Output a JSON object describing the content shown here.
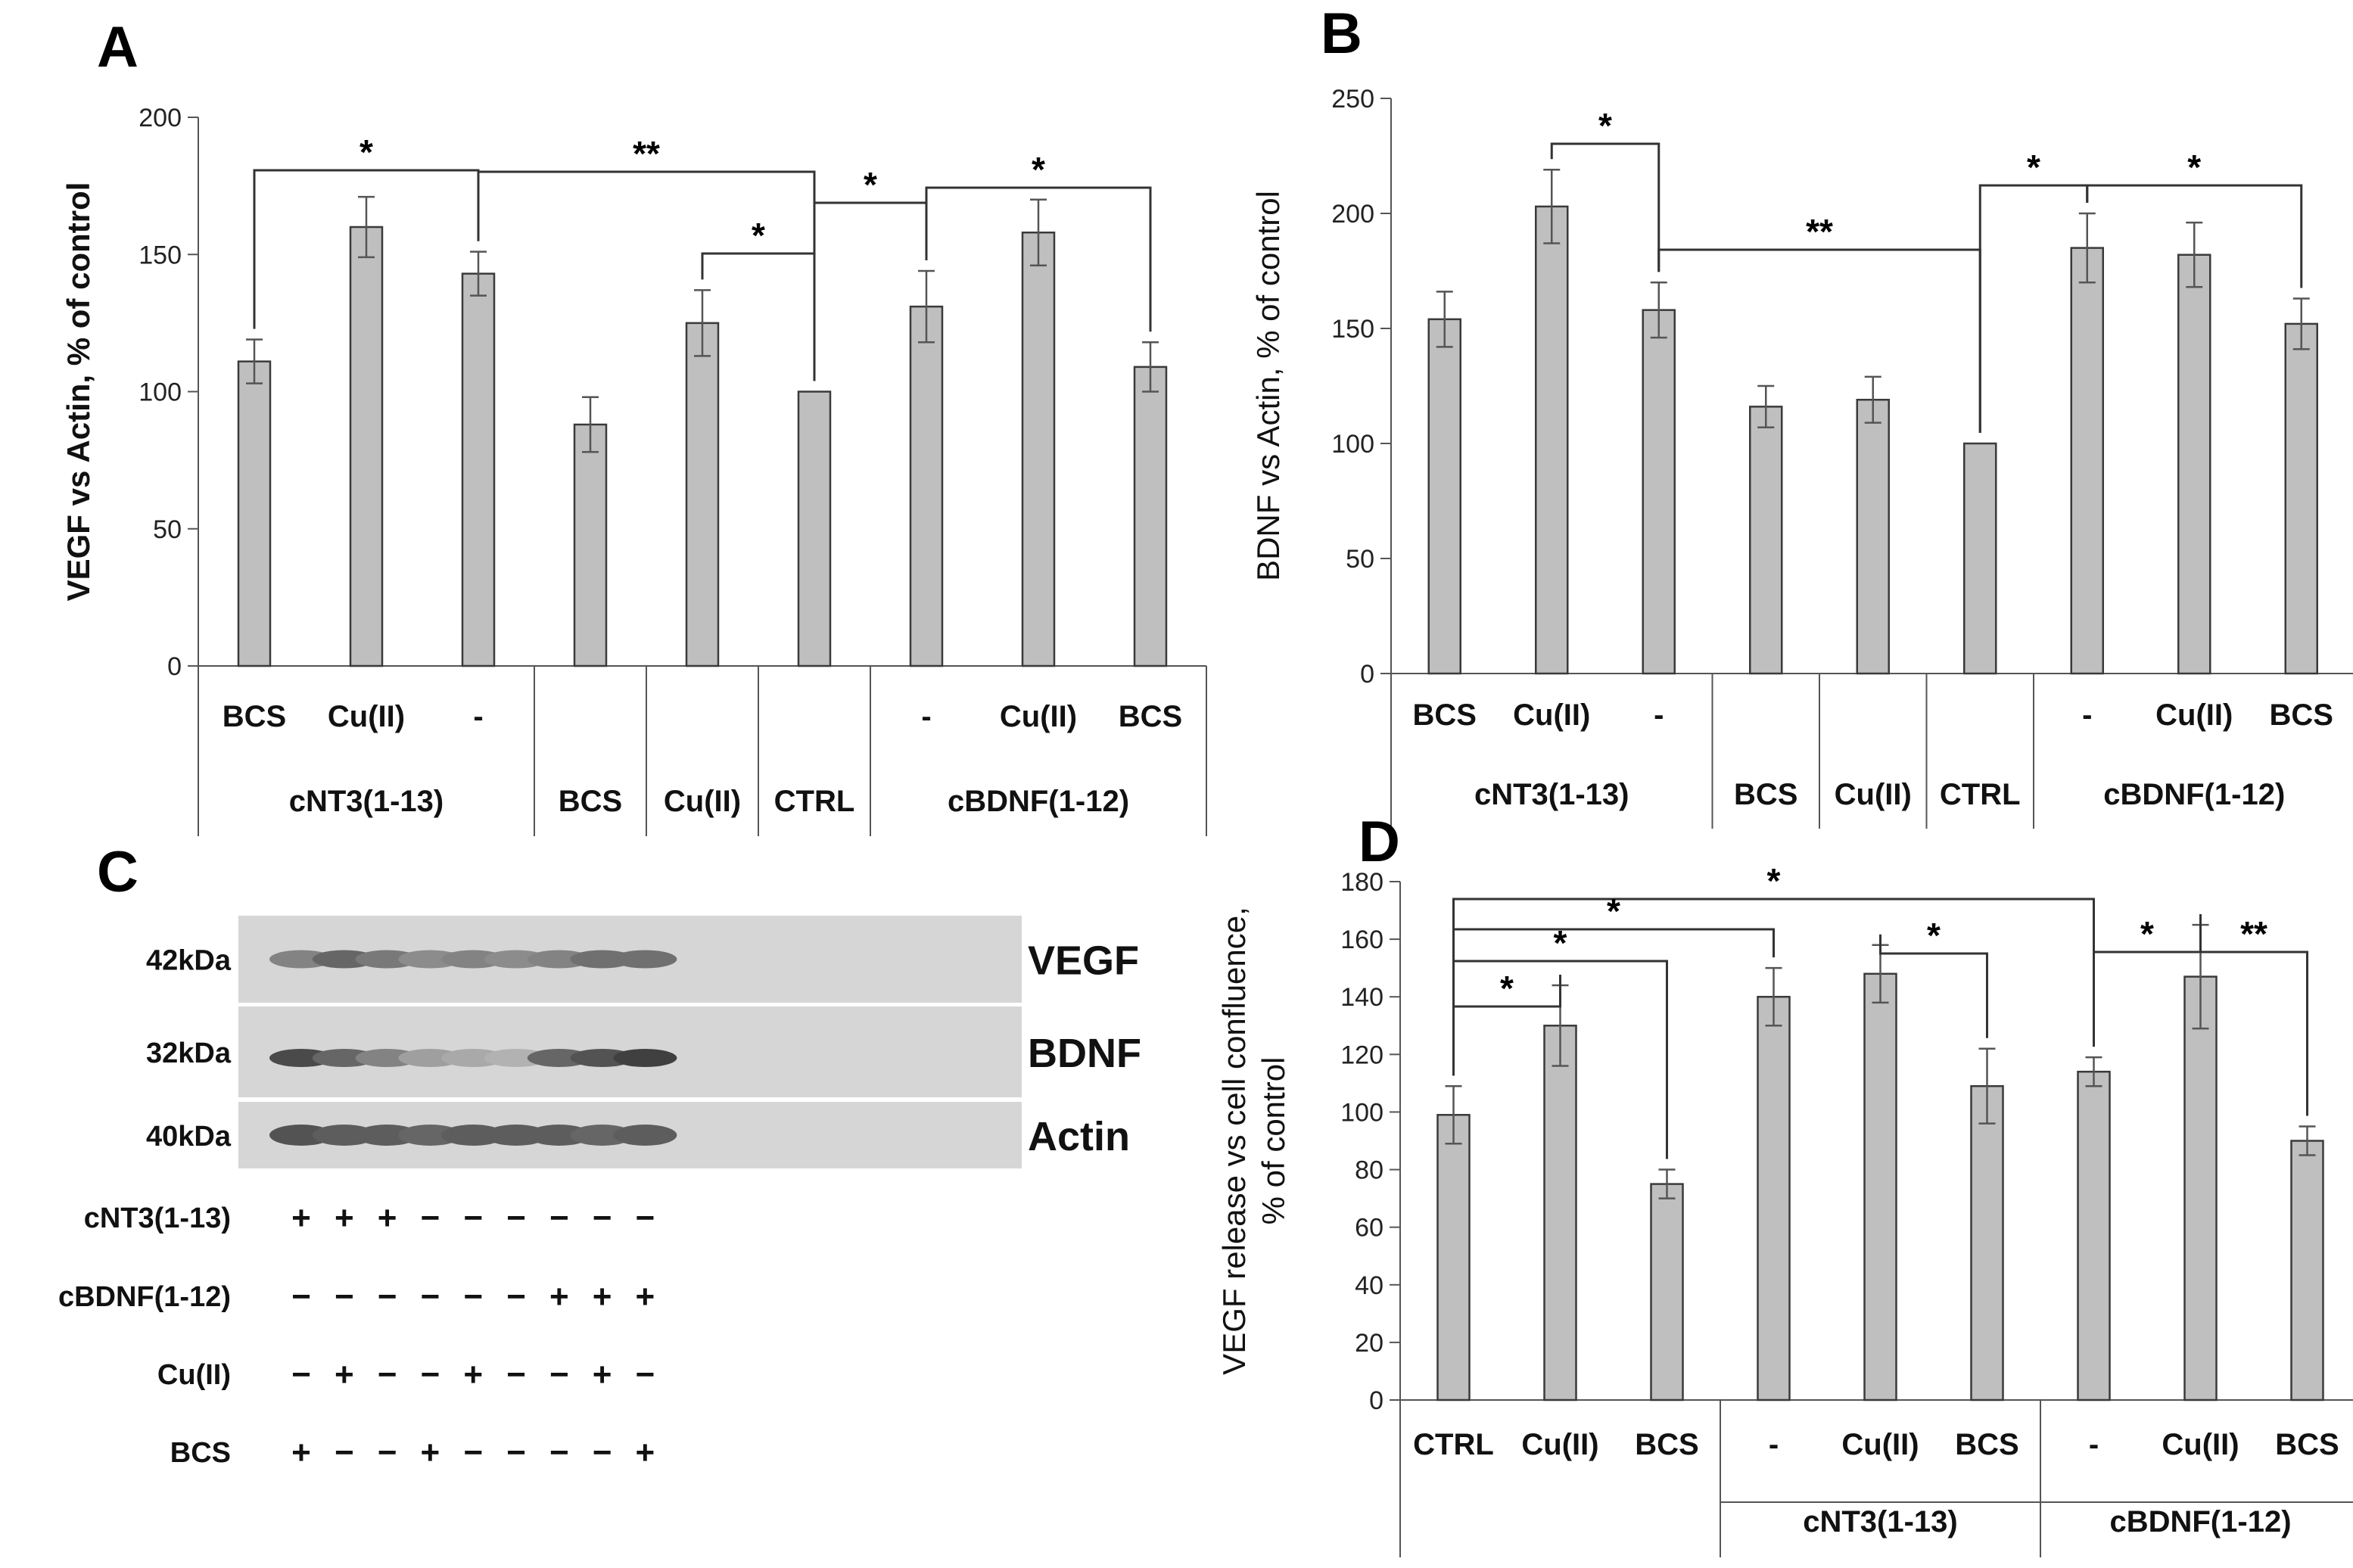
{
  "colors": {
    "bar": "#bfbfbf",
    "bar_edge": "#3a3a3a",
    "axis": "#555555",
    "text": "#111111"
  },
  "chart_data": [
    {
      "id": "A",
      "panel_label": "A",
      "type": "bar",
      "ylabel": "VEGF vs Actin, % of control",
      "ylim": [
        0,
        200
      ],
      "yticks": [
        "0",
        "50",
        "100",
        "150",
        "200"
      ],
      "categories": [
        "BCS",
        "Cu(II)",
        "-",
        "BCS",
        "Cu(II)",
        "CTRL",
        "-",
        "Cu(II)",
        "BCS"
      ],
      "values": [
        111,
        160,
        143,
        88,
        125,
        100,
        131,
        158,
        109
      ],
      "errors": [
        8,
        11,
        8,
        10,
        12,
        0,
        13,
        12,
        9
      ],
      "row1_labels": [
        "BCS",
        "Cu(II)",
        "-",
        "",
        "",
        "",
        "-",
        "Cu(II)",
        "BCS"
      ],
      "row2_groups": [
        {
          "label": "cNT3(1-13)",
          "from": 0,
          "to": 2
        },
        {
          "label": "BCS",
          "from": 3,
          "to": 3
        },
        {
          "label": "Cu(II)",
          "from": 4,
          "to": 4
        },
        {
          "label": "CTRL",
          "from": 5,
          "to": 5
        },
        {
          "label": "cBDNF(1-12)",
          "from": 6,
          "to": 8
        }
      ],
      "brackets": [
        {
          "from": 0,
          "to": 2,
          "label": "*"
        },
        {
          "from": 2,
          "to": 5,
          "label": "**"
        },
        {
          "from": 4,
          "to": 5,
          "label": "*"
        },
        {
          "from": 5,
          "to": 6,
          "label": "*"
        },
        {
          "from": 6,
          "to": 8,
          "label": "*"
        }
      ]
    },
    {
      "id": "B",
      "panel_label": "B",
      "type": "bar",
      "ylabel": "BDNF vs Actin, % of control",
      "ylim": [
        0,
        250
      ],
      "yticks": [
        "0",
        "50",
        "100",
        "150",
        "200",
        "250"
      ],
      "categories": [
        "BCS",
        "Cu(II)",
        "-",
        "BCS",
        "Cu(II)",
        "CTRL",
        "-",
        "Cu(II)",
        "BCS"
      ],
      "values": [
        154,
        203,
        158,
        116,
        119,
        100,
        185,
        182,
        152
      ],
      "errors": [
        12,
        16,
        12,
        9,
        10,
        0,
        15,
        14,
        11
      ],
      "row1_labels": [
        "BCS",
        "Cu(II)",
        "-",
        "",
        "",
        "",
        "-",
        "Cu(II)",
        "BCS"
      ],
      "row2_groups": [
        {
          "label": "cNT3(1-13)",
          "from": 0,
          "to": 2
        },
        {
          "label": "BCS",
          "from": 3,
          "to": 3
        },
        {
          "label": "Cu(II)",
          "from": 4,
          "to": 4
        },
        {
          "label": "CTRL",
          "from": 5,
          "to": 5
        },
        {
          "label": "cBDNF(1-12)",
          "from": 6,
          "to": 8
        }
      ],
      "brackets": [
        {
          "from": 1,
          "to": 2,
          "label": "*"
        },
        {
          "from": 2,
          "to": 5,
          "label": "**"
        },
        {
          "from": 5,
          "to": 6,
          "label": "*"
        },
        {
          "from": 6,
          "to": 8,
          "label": "*"
        }
      ]
    },
    {
      "id": "D",
      "panel_label": "D",
      "type": "bar",
      "ylabel": [
        "VEGF release vs cell confluence,",
        "% of control"
      ],
      "ylim": [
        0,
        180
      ],
      "yticks": [
        "0",
        "20",
        "40",
        "60",
        "80",
        "100",
        "120",
        "140",
        "160",
        "180"
      ],
      "categories": [
        "CTRL",
        "Cu(II)",
        "BCS",
        "-",
        "Cu(II)",
        "BCS",
        "-",
        "Cu(II)",
        "BCS"
      ],
      "values": [
        99,
        130,
        75,
        140,
        148,
        109,
        114,
        147,
        90
      ],
      "errors": [
        10,
        14,
        5,
        10,
        10,
        13,
        5,
        18,
        5
      ],
      "row1_labels": [
        "CTRL",
        "Cu(II)",
        "BCS",
        "-",
        "Cu(II)",
        "BCS",
        "-",
        "Cu(II)",
        "BCS"
      ],
      "row2_groups": [
        {
          "label": "",
          "from": 0,
          "to": 2
        },
        {
          "label": "cNT3(1-13)",
          "from": 3,
          "to": 5
        },
        {
          "label": "cBDNF(1-12)",
          "from": 6,
          "to": 8
        }
      ],
      "brackets": [
        {
          "from": 0,
          "to": 6,
          "label": "*"
        },
        {
          "from": 0,
          "to": 3,
          "label": "*"
        },
        {
          "from": 0,
          "to": 2,
          "label": "*"
        },
        {
          "from": 0,
          "to": 1,
          "label": "*"
        },
        {
          "from": 4,
          "to": 5,
          "label": "*"
        },
        {
          "from": 6,
          "to": 7,
          "label": "*"
        },
        {
          "from": 7,
          "to": 8,
          "label": "**"
        }
      ]
    }
  ],
  "blot": {
    "panel_label": "C",
    "bands": [
      {
        "kda": "42kDa",
        "name": "VEGF"
      },
      {
        "kda": "32kDa",
        "name": "BDNF"
      },
      {
        "kda": "40kDa",
        "name": "Actin"
      }
    ],
    "band_intensity": [
      [
        0.55,
        0.7,
        0.6,
        0.5,
        0.55,
        0.5,
        0.55,
        0.65,
        0.65
      ],
      [
        0.85,
        0.7,
        0.55,
        0.4,
        0.35,
        0.3,
        0.7,
        0.8,
        0.9
      ],
      [
        0.8,
        0.75,
        0.75,
        0.7,
        0.75,
        0.75,
        0.75,
        0.7,
        0.75
      ]
    ],
    "treatments": [
      {
        "label": "cNT3(1-13)",
        "signs": [
          "+",
          "+",
          "+",
          "−",
          "−",
          "−",
          "−",
          "−",
          "−"
        ]
      },
      {
        "label": "cBDNF(1-12)",
        "signs": [
          "−",
          "−",
          "−",
          "−",
          "−",
          "−",
          "+",
          "+",
          "+"
        ]
      },
      {
        "label": "Cu(II)",
        "signs": [
          "−",
          "+",
          "−",
          "−",
          "+",
          "−",
          "−",
          "+",
          "−"
        ]
      },
      {
        "label": "BCS",
        "signs": [
          "+",
          "−",
          "−",
          "+",
          "−",
          "−",
          "−",
          "−",
          "+"
        ]
      }
    ]
  }
}
